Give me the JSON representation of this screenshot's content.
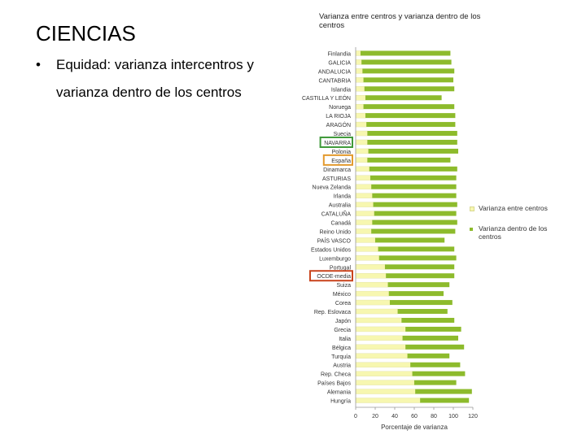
{
  "slide": {
    "title": "CIENCIAS",
    "bullet_symbol": "•",
    "bullet_line1": "Equidad: varianza intercentros y",
    "bullet_line2": "varianza dentro de los centros"
  },
  "colors": {
    "between": "#f7f7b0",
    "within": "#8dbb2c",
    "highlight_navarra": "#3f9a3a",
    "highlight_espana": "#e39a2e",
    "highlight_ocde": "#c9441d",
    "axis": "#999999"
  },
  "chart_data": {
    "type": "bar",
    "orientation": "horizontal",
    "stacked": true,
    "title": "Varianza entre centros y varianza dentro de los centros",
    "xlabel": "Porcentaje de varianza",
    "xlim": [
      0,
      120
    ],
    "xticks": [
      0,
      20,
      40,
      60,
      80,
      100,
      120
    ],
    "categories": [
      "Finlandia",
      "GALICIA",
      "ANDALUCIA",
      "CANTABRIA",
      "Islandia",
      "CASTILLA Y LEÓN",
      "Noruega",
      "LA RIOJA",
      "ARAGÓN",
      "Suecia",
      "NAVARRA",
      "Polonia",
      "España",
      "Dinamarca",
      "ASTURIAS",
      "Nueva Zelanda",
      "Irlanda",
      "Australia",
      "CATALUÑA",
      "Canadá",
      "Reino Unido",
      "PAÍS VASCO",
      "Estados Unidos",
      "Luxemburgo",
      "Portugal",
      "OCDE-media",
      "Suiza",
      "México",
      "Corea",
      "Rep. Eslovaca",
      "Japón",
      "Grecia",
      "Italia",
      "Bélgica",
      "Turquía",
      "Austria",
      "Rep. Checa",
      "Países Bajos",
      "Alemania",
      "Hungría"
    ],
    "highlighted": {
      "NAVARRA": "highlight_navarra",
      "España": "highlight_espana",
      "OCDE-media": "highlight_ocde"
    },
    "series": [
      {
        "name": "Varianza entre centros",
        "values": [
          5,
          6,
          7,
          8,
          9,
          10,
          8,
          10,
          11,
          12,
          12,
          13,
          12,
          14,
          15,
          16,
          17,
          18,
          19,
          17,
          16,
          20,
          23,
          24,
          30,
          31,
          33,
          34,
          35,
          43,
          47,
          51,
          48,
          51,
          53,
          56,
          58,
          60,
          61,
          66
        ]
      },
      {
        "name": "Varianza dentro de los centros",
        "values": [
          92,
          92,
          94,
          92,
          92,
          78,
          93,
          92,
          91,
          92,
          92,
          92,
          85,
          90,
          88,
          87,
          86,
          86,
          84,
          87,
          86,
          71,
          78,
          79,
          71,
          70,
          63,
          56,
          64,
          51,
          54,
          57,
          57,
          60,
          43,
          51,
          54,
          43,
          58,
          50
        ]
      }
    ],
    "legend": [
      "Varianza entre centros",
      "Varianza dentro de los centros"
    ],
    "legend_position": "right"
  }
}
